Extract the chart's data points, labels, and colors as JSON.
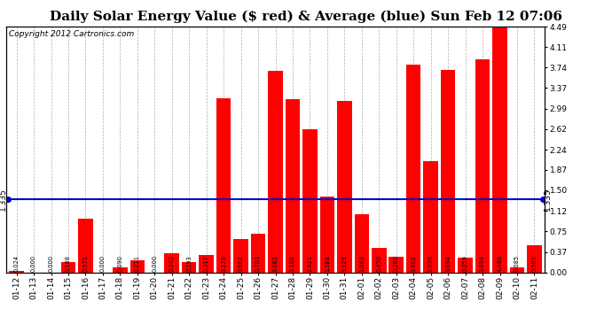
{
  "title": "Daily Solar Energy Value ($ red) & Average (blue) Sun Feb 12 07:06",
  "copyright": "Copyright 2012 Cartronics.com",
  "categories": [
    "01-12",
    "01-13",
    "01-14",
    "01-15",
    "01-16",
    "01-17",
    "01-18",
    "01-19",
    "01-20",
    "01-21",
    "01-22",
    "01-23",
    "01-24",
    "01-25",
    "01-26",
    "01-27",
    "01-28",
    "01-29",
    "01-30",
    "01-31",
    "02-01",
    "02-02",
    "02-03",
    "02-04",
    "02-05",
    "02-06",
    "02-07",
    "02-08",
    "02-09",
    "02-10",
    "02-11"
  ],
  "values": [
    0.024,
    0.0,
    0.0,
    0.188,
    0.971,
    0.0,
    0.09,
    0.211,
    0.0,
    0.342,
    0.193,
    0.317,
    3.178,
    0.602,
    0.703,
    3.682,
    3.165,
    2.621,
    1.388,
    3.125,
    1.063,
    0.45,
    0.28,
    3.802,
    2.036,
    3.694,
    0.259,
    3.894,
    4.488,
    0.085,
    0.501
  ],
  "average": 1.335,
  "bar_color": "#ff0000",
  "avg_line_color": "#0000cc",
  "background_color": "#ffffff",
  "grid_color": "#b0b0b0",
  "right_yticks": [
    0.0,
    0.37,
    0.75,
    1.12,
    1.5,
    1.87,
    2.24,
    2.62,
    2.99,
    3.37,
    3.74,
    4.11,
    4.49
  ],
  "ylim": [
    0,
    4.49
  ],
  "title_fontsize": 11,
  "copyright_fontsize": 6.5,
  "value_fontsize": 4.8,
  "tick_fontsize": 6.5,
  "avg_label": "1.335",
  "avg_label_fontsize": 6.5
}
